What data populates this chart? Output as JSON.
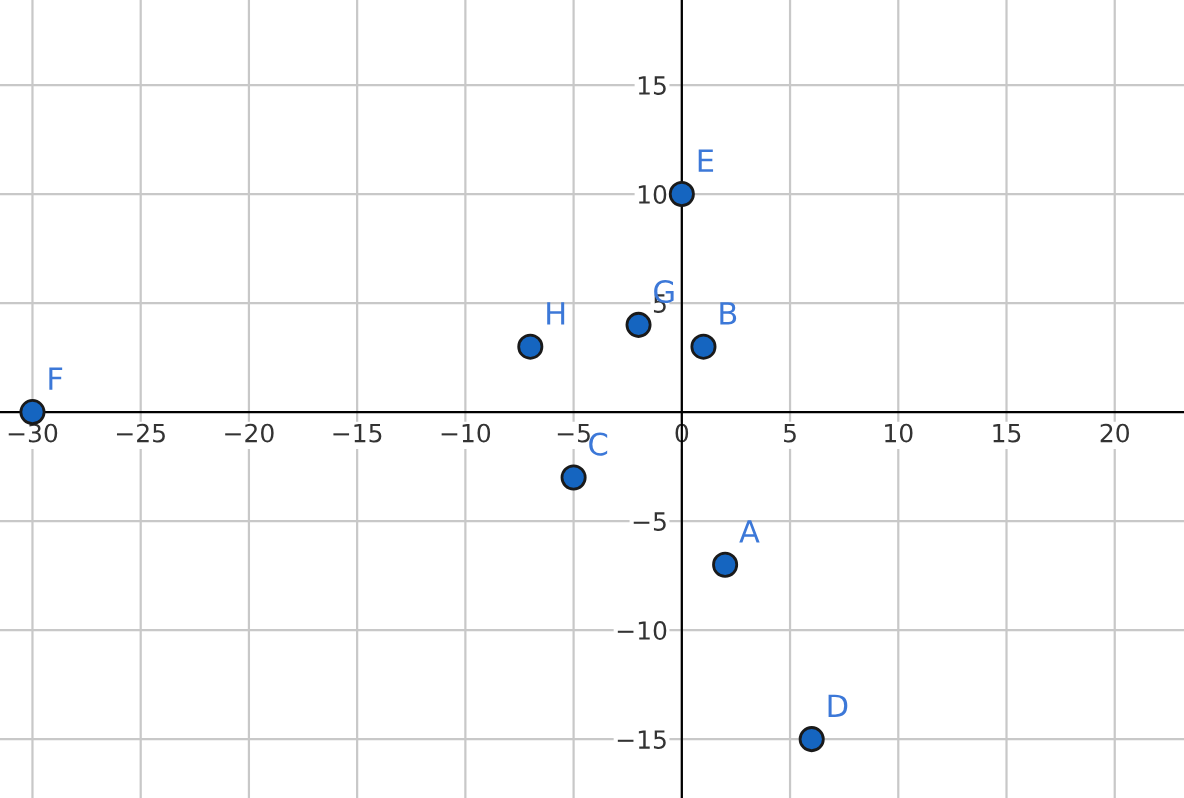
{
  "chart_data": {
    "type": "scatter",
    "x": [
      2,
      1,
      -5,
      6,
      0,
      -30,
      -2,
      -7
    ],
    "values": [
      -7,
      3,
      -3,
      -15,
      10,
      0,
      4,
      3
    ],
    "color": "#1565c0",
    "annotations": [
      {
        "text": "A",
        "x": 2,
        "y": -7
      },
      {
        "text": "B",
        "x": 1,
        "y": 3
      },
      {
        "text": "C",
        "x": -5,
        "y": -3
      },
      {
        "text": "D",
        "x": 6,
        "y": -15
      },
      {
        "text": "E",
        "x": 0,
        "y": 10
      },
      {
        "text": "F",
        "x": -30,
        "y": 0
      },
      {
        "text": "G",
        "x": -2,
        "y": 4
      },
      {
        "text": "H",
        "x": -7,
        "y": 3
      }
    ],
    "xlim": [
      -31.5,
      23.2
    ],
    "ylim": [
      -17.7,
      18.9
    ],
    "xticks": [
      -30,
      -25,
      -20,
      -15,
      -10,
      -5,
      0,
      5,
      10,
      15,
      20
    ],
    "yticks": [
      -15,
      -10,
      -5,
      5,
      10,
      15
    ],
    "grid": true,
    "marker": "circle"
  }
}
